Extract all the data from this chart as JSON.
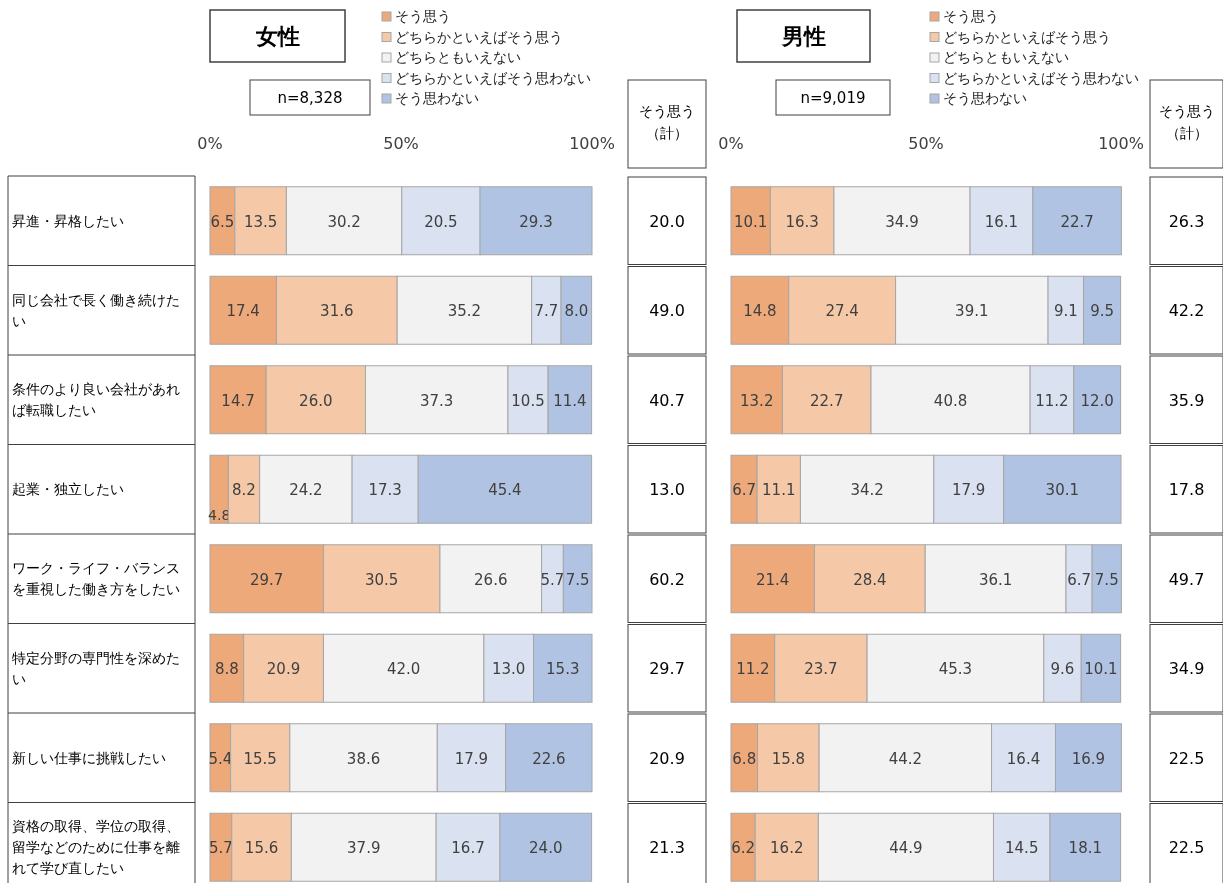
{
  "chart_data": [
    {
      "type": "bar",
      "orientation": "horizontal",
      "stacked": true,
      "title": "女性",
      "subtitle": "n=8,328",
      "legend": "top",
      "xlim": [
        0,
        100
      ],
      "xticks": [
        {
          "value": 0,
          "label": "0%"
        },
        {
          "value": 50,
          "label": "50%"
        },
        {
          "value": 100,
          "label": "100%"
        }
      ],
      "categories": [
        "昇進・昇格したい",
        "同じ会社で長く働き続けたい",
        "条件のより良い会社があれば転職したい",
        "起業・独立したい",
        "ワーク・ライフ・バランスを重視した働き方をしたい",
        "特定分野の専門性を深めたい",
        "新しい仕事に挑戦したい",
        "資格の取得、学位の取得、留学などのために仕事を離れて学び直したい"
      ],
      "series": [
        {
          "name": "そう思う",
          "color": "#eda97a",
          "values": [
            6.5,
            17.4,
            14.7,
            4.8,
            29.7,
            8.8,
            5.4,
            5.7
          ],
          "value_labels": [
            "6.5",
            "17.4",
            "14.7",
            "4.8",
            "29.7",
            "8.8",
            "5.4",
            "5.7"
          ]
        },
        {
          "name": "どちらかといえばそう思う",
          "color": "#f5c8a7",
          "values": [
            13.5,
            31.6,
            26.0,
            8.2,
            30.5,
            20.9,
            15.5,
            15.6
          ],
          "value_labels": [
            "13.5",
            "31.6",
            "26.0",
            "8.2",
            "30.5",
            "20.9",
            "15.5",
            "15.6"
          ]
        },
        {
          "name": "どちらともいえない",
          "color": "#f2f2f2",
          "values": [
            30.2,
            35.2,
            37.3,
            24.2,
            26.6,
            42.0,
            38.6,
            37.9
          ],
          "value_labels": [
            "30.2",
            "35.2",
            "37.3",
            "24.2",
            "26.6",
            "42.0",
            "38.6",
            "37.9"
          ]
        },
        {
          "name": "どちらかといえばそう思わない",
          "color": "#dae1f0",
          "values": [
            20.5,
            7.7,
            10.5,
            17.3,
            5.7,
            13.0,
            17.9,
            16.7
          ],
          "value_labels": [
            "20.5",
            "7.7",
            "10.5",
            "17.3",
            "5.7",
            "13.0",
            "17.9",
            "16.7"
          ]
        },
        {
          "name": "そう思わない",
          "color": "#b1c3e3",
          "values": [
            29.3,
            8.0,
            11.4,
            45.4,
            7.5,
            15.3,
            22.6,
            24.0
          ],
          "value_labels": [
            "29.3",
            "8.0",
            "11.4",
            "45.4",
            "7.5",
            "15.3",
            "22.6",
            "24.0"
          ]
        }
      ],
      "annotations": [
        "そう思う",
        "（計）",
        "20.0",
        "49.0",
        "40.7",
        "13.0",
        "60.2",
        "29.7",
        "20.9",
        "21.3"
      ]
    },
    {
      "type": "bar",
      "orientation": "horizontal",
      "stacked": true,
      "title": "男性",
      "subtitle": "n=9,019",
      "legend": "top",
      "tick_labels": "x",
      "xlim": [
        0,
        100
      ],
      "xticks": [
        {
          "value": 0,
          "label": "0%"
        },
        {
          "value": 50,
          "label": "50%"
        },
        {
          "value": 100,
          "label": "100%"
        }
      ],
      "categories": [
        null,
        null,
        null,
        null,
        null,
        null,
        null,
        null
      ],
      "series": [
        {
          "name": "そう思う",
          "color": "#eda97a",
          "values": [
            10.1,
            14.8,
            13.2,
            6.7,
            21.4,
            11.2,
            6.8,
            6.2
          ],
          "value_labels": [
            "10.1",
            "14.8",
            "13.2",
            "6.7",
            "21.4",
            "11.2",
            "6.8",
            "6.2"
          ]
        },
        {
          "name": "どちらかといえばそう思う",
          "color": "#f5c8a7",
          "values": [
            16.3,
            27.4,
            22.7,
            11.1,
            28.4,
            23.7,
            15.8,
            16.2
          ],
          "value_labels": [
            "16.3",
            "27.4",
            "22.7",
            "11.1",
            "28.4",
            "23.7",
            "15.8",
            "16.2"
          ]
        },
        {
          "name": "どちらともいえない",
          "color": "#f2f2f2",
          "values": [
            34.9,
            39.1,
            40.8,
            34.2,
            36.1,
            45.3,
            44.2,
            44.9
          ],
          "value_labels": [
            "34.9",
            "39.1",
            "40.8",
            "34.2",
            "36.1",
            "45.3",
            "44.2",
            "44.9"
          ]
        },
        {
          "name": "どちらかといえばそう思わない",
          "color": "#dae1f0",
          "values": [
            16.1,
            9.1,
            11.2,
            17.9,
            6.7,
            9.6,
            16.4,
            14.5
          ],
          "value_labels": [
            "16.1",
            "9.1",
            "11.2",
            "17.9",
            "6.7",
            "9.6",
            "16.4",
            "14.5"
          ]
        },
        {
          "name": "そう思わない",
          "color": "#b1c3e3",
          "values": [
            22.7,
            9.5,
            12.0,
            30.1,
            7.5,
            10.1,
            16.9,
            18.1
          ],
          "value_labels": [
            "22.7",
            "9.5",
            "12.0",
            "30.1",
            "7.5",
            "10.1",
            "16.9",
            "18.1"
          ]
        }
      ],
      "annotations": [
        "そう思う",
        "（計）",
        "26.3",
        "42.2",
        "35.9",
        "17.8",
        "49.7",
        "34.9",
        "22.5",
        "22.5"
      ]
    }
  ]
}
